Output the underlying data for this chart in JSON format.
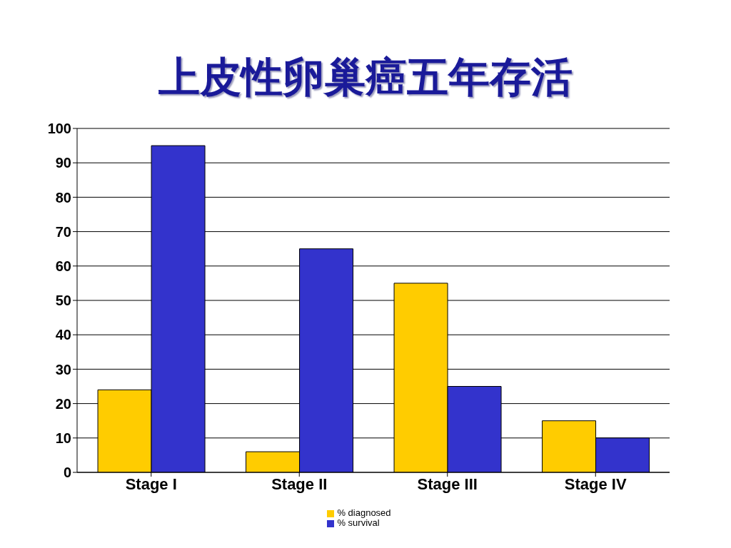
{
  "chart_data": {
    "type": "bar",
    "title": "上皮性卵巢癌五年存活",
    "categories": [
      "Stage I",
      "Stage II",
      "Stage III",
      "Stage IV"
    ],
    "series": [
      {
        "name": "% diagnosed",
        "color": "#ffcc00",
        "values": [
          24,
          6,
          55,
          15
        ]
      },
      {
        "name": "% survival",
        "color": "#3333cc",
        "values": [
          95,
          65,
          25,
          10
        ]
      }
    ],
    "ylim": [
      0,
      100
    ],
    "yticks": [
      0,
      10,
      20,
      30,
      40,
      50,
      60,
      70,
      80,
      90,
      100
    ],
    "grid": "y",
    "legend": "bottom"
  }
}
